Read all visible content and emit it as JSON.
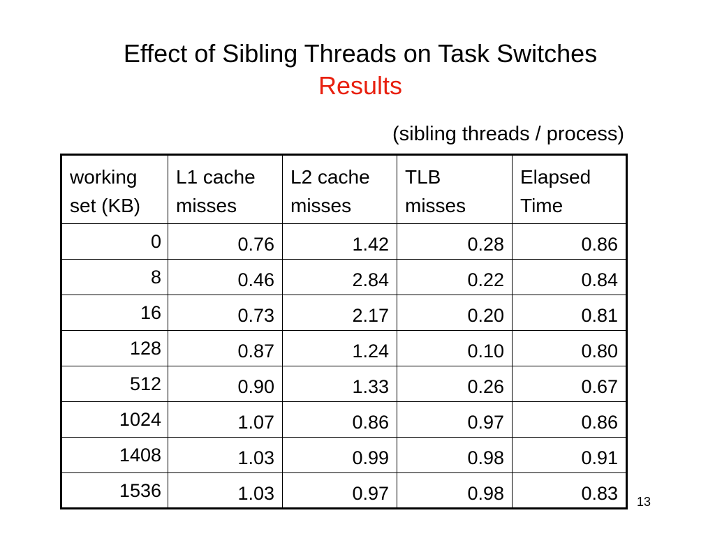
{
  "slide": {
    "title": "Effect of Sibling Threads on Task Switches",
    "subtitle": "Results",
    "subtitle_color": "#e8200f",
    "caption": "(sibling threads / process)",
    "page_number": "13"
  },
  "table": {
    "headers": [
      [
        "working",
        "set (KB)"
      ],
      [
        "L1 cache",
        "misses"
      ],
      [
        "L2 cache",
        "misses"
      ],
      [
        "TLB",
        "misses"
      ],
      [
        "Elapsed",
        "Time"
      ]
    ],
    "rows": [
      [
        "0",
        "0.76",
        "1.42",
        "0.28",
        "0.86"
      ],
      [
        "8",
        "0.46",
        "2.84",
        "0.22",
        "0.84"
      ],
      [
        "16",
        "0.73",
        "2.17",
        "0.20",
        "0.81"
      ],
      [
        "128",
        "0.87",
        "1.24",
        "0.10",
        "0.80"
      ],
      [
        "512",
        "0.90",
        "1.33",
        "0.26",
        "0.67"
      ],
      [
        "1024",
        "1.07",
        "0.86",
        "0.97",
        "0.86"
      ],
      [
        "1408",
        "1.03",
        "0.99",
        "0.98",
        "0.91"
      ],
      [
        "1536",
        "1.03",
        "0.97",
        "0.98",
        "0.83"
      ]
    ]
  }
}
